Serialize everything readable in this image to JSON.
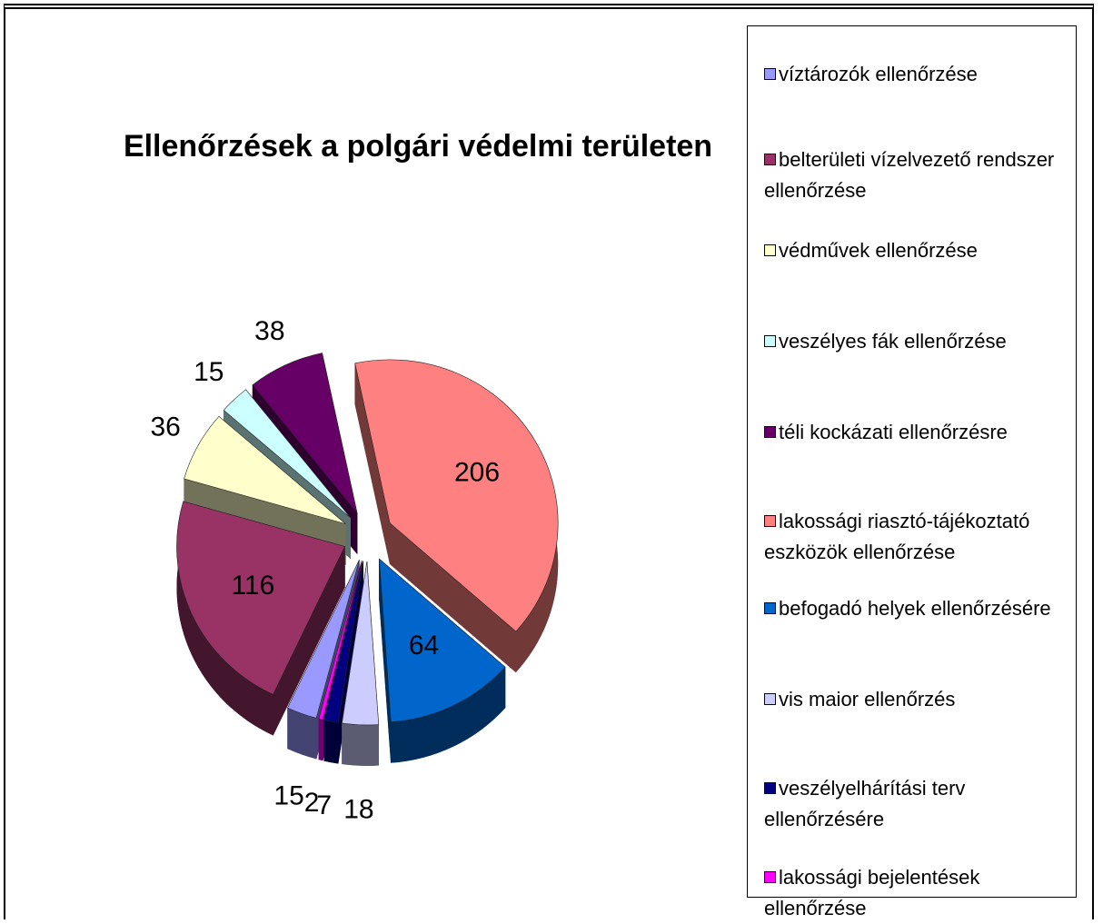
{
  "chart_data": {
    "type": "pie",
    "title": "Ellenőrzések a polgári védelmi területen",
    "categories": [
      "víztározók ellenőrzése",
      "belterületi vízelvezető rendszer ellenőrzése",
      "védművek ellenőrzése",
      "veszélyes fák ellenőrzése",
      "téli kockázati ellenőrzésre",
      "lakossági riasztó-tájékoztató eszközök ellenőrzése",
      "befogadó helyek ellenőrzésére",
      "vis maior ellenőrzés",
      "veszélyelhárítási terv ellenőrzésére",
      "lakossági bejelentések ellenőrzése"
    ],
    "values": [
      15,
      116,
      36,
      15,
      38,
      206,
      64,
      18,
      7,
      2
    ],
    "colors": [
      "#9999ff",
      "#993366",
      "#ffffcc",
      "#ccffff",
      "#660066",
      "#ff8080",
      "#0066cc",
      "#ccccff",
      "#000080",
      "#ff00ff"
    ],
    "legend": "right"
  }
}
